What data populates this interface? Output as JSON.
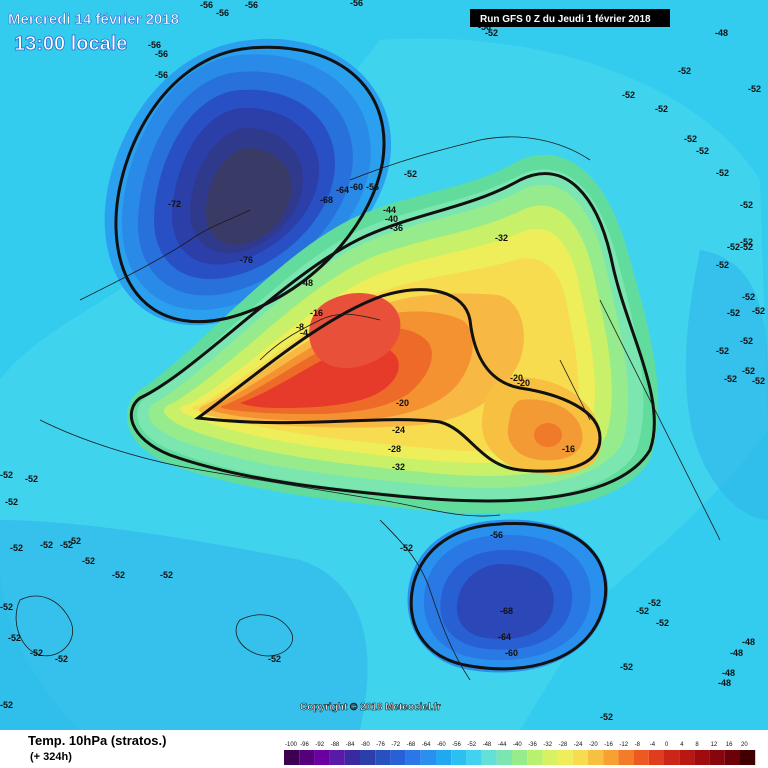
{
  "header": {
    "date_label": "Mercredi 14 février 2018",
    "time_label": "13:00 locale",
    "run_label": "Run GFS 0 Z du Jeudi 1 février 2018"
  },
  "footer": {
    "title": "Temp. 10hPa (stratos.)",
    "subtitle": "(+ 324h)",
    "copyright": "Copyright © 2018 Meteociel.fr"
  },
  "colors": {
    "ocean_base": "#33ccee",
    "cold_core": "#3a3a66",
    "warm_core": "#e63a2a"
  },
  "scale": {
    "labels": [
      "-100",
      "-96",
      "-92",
      "-88",
      "-84",
      "-80",
      "-76",
      "-72",
      "-68",
      "-64",
      "-60",
      "-56",
      "-52",
      "-48",
      "-44",
      "-40",
      "-36",
      "-32",
      "-28",
      "-24",
      "-20",
      "-16",
      "-12",
      "-8",
      "-4",
      "0",
      "4",
      "8",
      "12",
      "16",
      "20"
    ],
    "colors": [
      "#3d0050",
      "#55007a",
      "#6a00a0",
      "#5a1aa8",
      "#3a2aa0",
      "#2c3ea8",
      "#2850c0",
      "#2860d8",
      "#2a78e8",
      "#2a90f0",
      "#22a8f0",
      "#2cc0f0",
      "#40d2f0",
      "#64e0d8",
      "#7ce6b0",
      "#96ec8c",
      "#b8f070",
      "#d6f262",
      "#eeee5a",
      "#f8dc50",
      "#f8c040",
      "#f8a030",
      "#f47c28",
      "#ec5a22",
      "#e03c1e",
      "#cc2618",
      "#b81812",
      "#a00c0e",
      "#86060c",
      "#6a0208",
      "#400000"
    ]
  },
  "map_labels": [
    "-56",
    "-56",
    "-56",
    "-56",
    "-52",
    "-48",
    "-56",
    "-56",
    "-56",
    "-56",
    "-52",
    "-52",
    "-52",
    "-52",
    "-52",
    "-52",
    "-52",
    "-52",
    "-52",
    "-52",
    "-52",
    "-52",
    "-52",
    "-52",
    "-52",
    "-52",
    "-52",
    "-52",
    "-52",
    "-52",
    "-72",
    "-68",
    "-64",
    "-60",
    "-56",
    "-76",
    "-52",
    "-44",
    "-40",
    "-36",
    "-48",
    "-32",
    "-16",
    "-8",
    "-4",
    "-20",
    "-20",
    "-20",
    "-24",
    "-28",
    "-32",
    "-16",
    "-56",
    "-68",
    "-64",
    "-60",
    "-52",
    "-52",
    "-52",
    "-52",
    "-52",
    "-52",
    "-52",
    "-52",
    "-52",
    "-52",
    "-52",
    "-52",
    "-48",
    "-48",
    "-48",
    "-48",
    "-52",
    "-52",
    "-52",
    "-52",
    "-52",
    "-52",
    "-52",
    "-52",
    "-52",
    "-52"
  ]
}
